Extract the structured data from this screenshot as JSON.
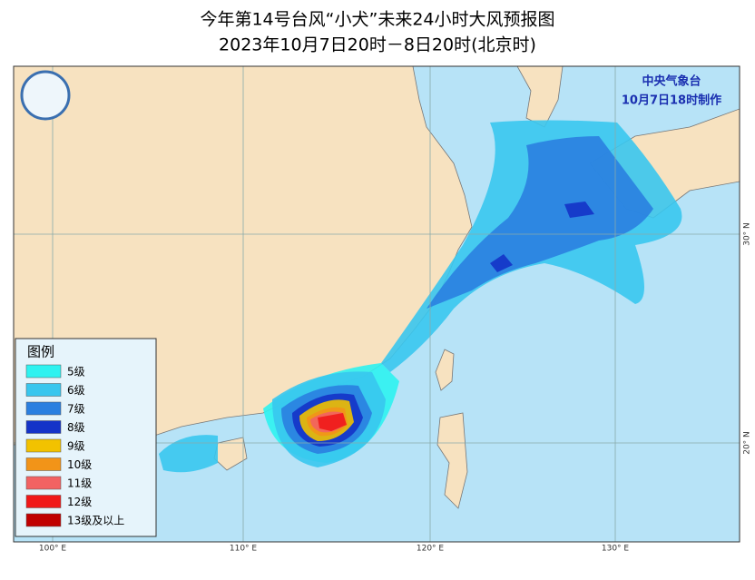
{
  "header": {
    "title": "今年第14号台风“小犬”未来24小时大风预报图",
    "subtitle": "2023年10月7日20时－8日20时(北京时)"
  },
  "agency": {
    "name": "中央气象台",
    "issued": "10月7日18时制作"
  },
  "legend": {
    "title": "图例",
    "items": [
      {
        "label": "5级",
        "color": "#2ef2f0"
      },
      {
        "label": "6级",
        "color": "#38c6ee"
      },
      {
        "label": "7级",
        "color": "#2a7fe0"
      },
      {
        "label": "8级",
        "color": "#1433c8"
      },
      {
        "label": "9级",
        "color": "#f2c200"
      },
      {
        "label": "10级",
        "color": "#f29418"
      },
      {
        "label": "11级",
        "color": "#f26262"
      },
      {
        "label": "12级",
        "color": "#f01818"
      },
      {
        "label": "13级及以上",
        "color": "#c00000"
      }
    ]
  },
  "axes": {
    "lon": [
      "100° E",
      "110° E",
      "120° E",
      "130° E"
    ],
    "lat": [
      "30° N",
      "20° N"
    ]
  }
}
